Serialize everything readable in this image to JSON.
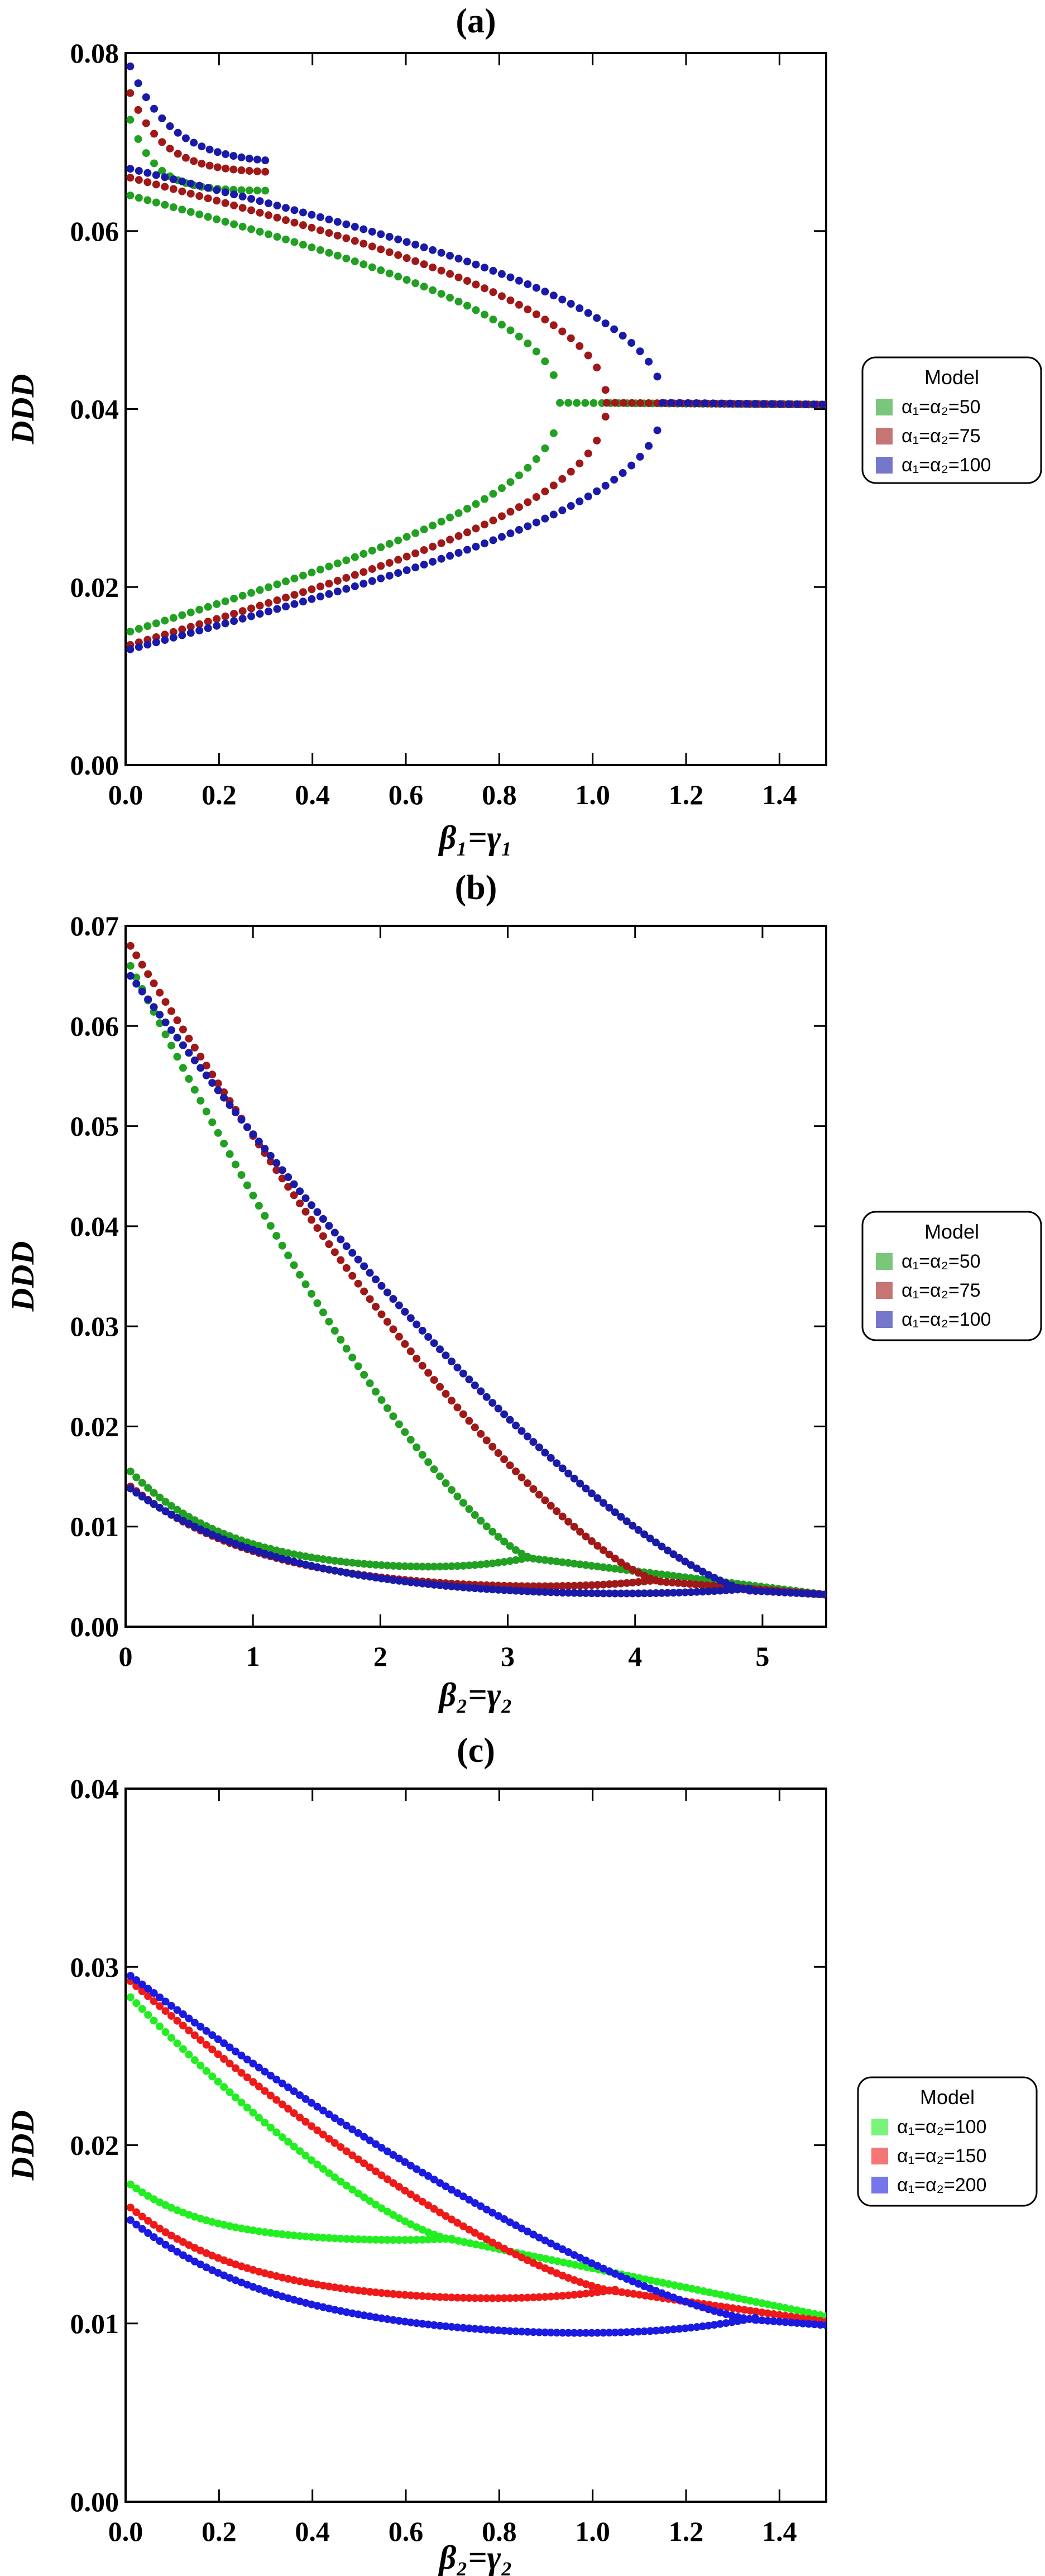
{
  "chart_data": [
    {
      "type": "scatter",
      "panel_label": "(a)",
      "xlabel": "β₁=γ₁",
      "ylabel": "DDD",
      "xlim": [
        0,
        1.5
      ],
      "ylim": [
        0,
        0.08
      ],
      "xticks": [
        "0.0",
        "0.2",
        "0.4",
        "0.6",
        "0.8",
        "1.0",
        "1.2",
        "1.4"
      ],
      "yticks": [
        "0.00",
        "0.02",
        "0.04",
        "0.06",
        "0.08"
      ],
      "legend": {
        "title": "Model",
        "entries": [
          "α₁=α₂=50",
          "α₁=α₂=75",
          "α₁=α₂=100"
        ]
      },
      "series": [
        {
          "name": "α₁=α₂=50",
          "color": "#22a022",
          "bif": 0.93,
          "y_bif": 0.0407,
          "upper_start": 0.064,
          "lower_start": 0.015,
          "high_start": 0.072,
          "high_decay": 0.04,
          "tail_end": 0.0405
        },
        {
          "name": "α₁=α₂=75",
          "color": "#a01818",
          "bif": 1.03,
          "y_bif": 0.0407,
          "upper_start": 0.066,
          "lower_start": 0.0135,
          "high_start": 0.075,
          "high_decay": 0.07,
          "tail_end": 0.0405
        },
        {
          "name": "α₁=α₂=100",
          "color": "#1a1aa8",
          "bif": 1.15,
          "y_bif": 0.0407,
          "upper_start": 0.067,
          "lower_start": 0.013,
          "high_start": 0.078,
          "high_decay": 0.1,
          "tail_end": 0.0405
        }
      ]
    },
    {
      "type": "scatter",
      "panel_label": "(b)",
      "xlabel": "β₂=γ₂",
      "ylabel": "DDD",
      "xlim": [
        0,
        5.5
      ],
      "ylim": [
        0,
        0.07
      ],
      "xticks": [
        "0",
        "1",
        "2",
        "3",
        "4",
        "5"
      ],
      "yticks": [
        "0.00",
        "0.01",
        "0.02",
        "0.03",
        "0.04",
        "0.05",
        "0.06",
        "0.07"
      ],
      "legend": {
        "title": "Model",
        "entries": [
          "α₁=α₂=50",
          "α₁=α₂=75",
          "α₁=α₂=100"
        ]
      },
      "series": [
        {
          "name": "α₁=α₂=50",
          "color": "#22a022",
          "bif": 3.2,
          "y_bif": 0.0068,
          "upper_start": 0.066,
          "lower_start": 0.0155,
          "lower_min": 0.0052,
          "tail_end": 0.0032
        },
        {
          "name": "α₁=α₂=75",
          "color": "#a01818",
          "bif": 4.2,
          "y_bif": 0.0045,
          "upper_start": 0.068,
          "lower_start": 0.014,
          "lower_min": 0.0033,
          "tail_end": 0.0032
        },
        {
          "name": "α₁=α₂=100",
          "color": "#1a1aa8",
          "bif": 4.9,
          "y_bif": 0.0036,
          "upper_start": 0.065,
          "lower_start": 0.0138,
          "lower_min": 0.0026,
          "tail_end": 0.0032
        }
      ]
    },
    {
      "type": "scatter",
      "panel_label": "(c)",
      "xlabel": "β₂=γ₂",
      "ylabel": "DDD",
      "xlim": [
        0,
        1.5
      ],
      "ylim": [
        0,
        0.04
      ],
      "xticks": [
        "0.0",
        "0.2",
        "0.4",
        "0.6",
        "0.8",
        "1.0",
        "1.2",
        "1.4"
      ],
      "yticks": [
        "0.00",
        "0.01",
        "0.02",
        "0.03",
        "0.04"
      ],
      "legend": {
        "title": "Model",
        "entries": [
          "α₁=α₂=100",
          "α₁=α₂=150",
          "α₁=α₂=200"
        ]
      },
      "series": [
        {
          "name": "α₁=α₂=100",
          "color": "#22ee22",
          "bif": 0.7,
          "y_bif": 0.0147,
          "upper_start": 0.0283,
          "lower_start": 0.0178,
          "lower_min": 0.0145,
          "tail_end": 0.0104
        },
        {
          "name": "α₁=α₂=150",
          "color": "#ee1a1a",
          "bif": 1.05,
          "y_bif": 0.0118,
          "upper_start": 0.0292,
          "lower_start": 0.0165,
          "lower_min": 0.011,
          "tail_end": 0.0101
        },
        {
          "name": "α₁=α₂=200",
          "color": "#1a1ae0",
          "bif": 1.35,
          "y_bif": 0.0102,
          "upper_start": 0.0295,
          "lower_start": 0.0158,
          "lower_min": 0.0089,
          "tail_end": 0.0099
        }
      ]
    }
  ]
}
